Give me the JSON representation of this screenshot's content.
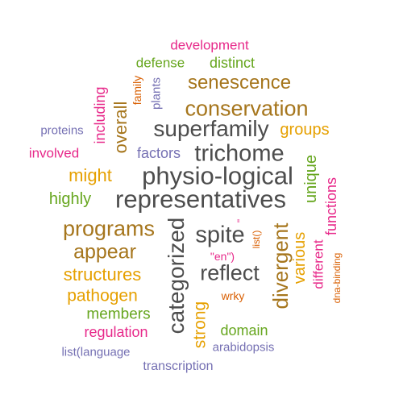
{
  "palette": {
    "dark_gray": "#4d4d4d",
    "brown": "#a6761d",
    "gold": "#e6a000",
    "green": "#66a61e",
    "magenta": "#e7298a",
    "purple": "#7570b3",
    "orange": "#d95f02"
  },
  "words": [
    {
      "text": "development",
      "color": "#e7298a"
    },
    {
      "text": "defense",
      "color": "#66a61e"
    },
    {
      "text": "distinct",
      "color": "#66a61e"
    },
    {
      "text": "family",
      "color": "#d95f02"
    },
    {
      "text": "plants",
      "color": "#7570b3"
    },
    {
      "text": "including",
      "color": "#e7298a"
    },
    {
      "text": "overall",
      "color": "#a6761d"
    },
    {
      "text": "senescence",
      "color": "#a6761d"
    },
    {
      "text": "conservation",
      "color": "#a6761d"
    },
    {
      "text": "proteins",
      "color": "#7570b3"
    },
    {
      "text": "superfamily",
      "color": "#4d4d4d"
    },
    {
      "text": "groups",
      "color": "#e6a000"
    },
    {
      "text": "involved",
      "color": "#e7298a"
    },
    {
      "text": "factors",
      "color": "#7570b3"
    },
    {
      "text": "trichome",
      "color": "#4d4d4d"
    },
    {
      "text": "might",
      "color": "#e6a000"
    },
    {
      "text": "physio-logical",
      "color": "#4d4d4d"
    },
    {
      "text": "unique",
      "color": "#66a61e"
    },
    {
      "text": "functions",
      "color": "#e7298a"
    },
    {
      "text": "highly",
      "color": "#66a61e"
    },
    {
      "text": "representatives",
      "color": "#4d4d4d"
    },
    {
      "text": "programs",
      "color": "#a6761d"
    },
    {
      "text": "categorized",
      "color": "#4d4d4d"
    },
    {
      "text": "\"",
      "color": "#e7298a"
    },
    {
      "text": "spite",
      "color": "#4d4d4d"
    },
    {
      "text": "list()",
      "color": "#d95f02"
    },
    {
      "text": "divergent",
      "color": "#a6761d"
    },
    {
      "text": "various",
      "color": "#e6a000"
    },
    {
      "text": "different",
      "color": "#e7298a"
    },
    {
      "text": "dna-binding",
      "color": "#d95f02"
    },
    {
      "text": "appear",
      "color": "#a6761d"
    },
    {
      "text": "\"en\")",
      "color": "#e7298a"
    },
    {
      "text": "reflect",
      "color": "#4d4d4d"
    },
    {
      "text": "structures",
      "color": "#e6a000"
    },
    {
      "text": "pathogen",
      "color": "#e6a000"
    },
    {
      "text": "wrky",
      "color": "#d95f02"
    },
    {
      "text": "strong",
      "color": "#e6a000"
    },
    {
      "text": "members",
      "color": "#66a61e"
    },
    {
      "text": "regulation",
      "color": "#e7298a"
    },
    {
      "text": "domain",
      "color": "#66a61e"
    },
    {
      "text": "arabidopsis",
      "color": "#7570b3"
    },
    {
      "text": "list(language",
      "color": "#7570b3"
    },
    {
      "text": "transcription",
      "color": "#7570b3"
    }
  ]
}
